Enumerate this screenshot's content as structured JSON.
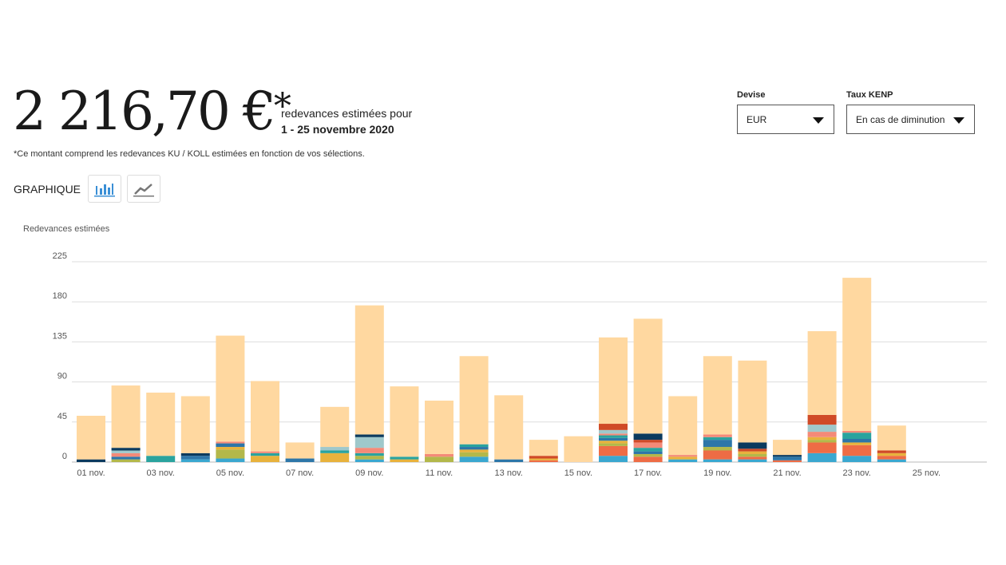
{
  "header": {
    "total": "2 216,70 €",
    "total_mark": "*",
    "subtitle": "redevances estimées pour",
    "period": "1 - 25 novembre 2020",
    "note": "*Ce montant comprend les redevances KU / KOLL estimées en fonction de vos sélections.",
    "graph_label": "GRAPHIQUE"
  },
  "filters": {
    "currency_label": "Devise",
    "currency_value": "EUR",
    "kenp_label": "Taux KENP",
    "kenp_value": "En cas de diminution"
  },
  "chart_data": {
    "type": "bar",
    "stacked": true,
    "ylabel": "Redevances estimées",
    "ylim": [
      0,
      225
    ],
    "yticks": [
      "0",
      "45",
      "90",
      "135",
      "180",
      "225"
    ],
    "grid": true,
    "categories": [
      "01 nov.",
      "02 nov.",
      "03 nov.",
      "04 nov.",
      "05 nov.",
      "06 nov.",
      "07 nov.",
      "08 nov.",
      "09 nov.",
      "10 nov.",
      "11 nov.",
      "12 nov.",
      "13 nov.",
      "14 nov.",
      "15 nov.",
      "16 nov.",
      "17 nov.",
      "18 nov.",
      "19 nov.",
      "20 nov.",
      "21 nov.",
      "22 nov.",
      "23 nov.",
      "24 nov.",
      "25 nov."
    ],
    "xtick_labels": [
      "01 nov.",
      "03 nov.",
      "05 nov.",
      "07 nov.",
      "09 nov.",
      "11 nov.",
      "13 nov.",
      "15 nov.",
      "17 nov.",
      "19 nov.",
      "21 nov.",
      "23 nov.",
      "25 nov."
    ],
    "series": [
      {
        "color": "#3aa7d0",
        "values": [
          0,
          0,
          0,
          3,
          4,
          0,
          0,
          0,
          3,
          0,
          0,
          6,
          0,
          0,
          0,
          7,
          0,
          3,
          3,
          3,
          0,
          10,
          7,
          3,
          0
        ]
      },
      {
        "color": "#ee6c45",
        "values": [
          0,
          0,
          0,
          0,
          0,
          0,
          0,
          0,
          0,
          0,
          0,
          0,
          0,
          2,
          0,
          11,
          6,
          0,
          10,
          3,
          2,
          12,
          12,
          4,
          0
        ]
      },
      {
        "color": "#b3b84a",
        "values": [
          0,
          3,
          0,
          0,
          10,
          0,
          0,
          0,
          4,
          0,
          6,
          5,
          0,
          0,
          0,
          3,
          3,
          0,
          4,
          3,
          0,
          3,
          0,
          0,
          0
        ]
      },
      {
        "color": "#e8b23c",
        "values": [
          0,
          0,
          0,
          0,
          3,
          7,
          0,
          10,
          0,
          3,
          0,
          3,
          0,
          2,
          0,
          3,
          0,
          3,
          0,
          3,
          0,
          3,
          3,
          3,
          0
        ]
      },
      {
        "color": "#2d76a8",
        "values": [
          0,
          3,
          0,
          4,
          4,
          0,
          4,
          0,
          0,
          0,
          0,
          3,
          3,
          0,
          0,
          3,
          3,
          0,
          8,
          0,
          4,
          0,
          4,
          0,
          0
        ]
      },
      {
        "color": "#2aa39e",
        "values": [
          0,
          0,
          7,
          0,
          0,
          3,
          0,
          3,
          3,
          3,
          0,
          3,
          0,
          0,
          0,
          3,
          4,
          0,
          3,
          0,
          0,
          0,
          7,
          0,
          0
        ]
      },
      {
        "color": "#f48a78",
        "values": [
          0,
          4,
          0,
          0,
          2,
          2,
          0,
          0,
          6,
          0,
          3,
          0,
          0,
          0,
          0,
          2,
          6,
          2,
          3,
          0,
          0,
          6,
          2,
          0,
          0
        ]
      },
      {
        "color": "#9fc8cb",
        "values": [
          0,
          3,
          0,
          0,
          0,
          0,
          0,
          4,
          12,
          0,
          0,
          0,
          0,
          0,
          0,
          4,
          0,
          0,
          0,
          0,
          0,
          8,
          0,
          0,
          0
        ]
      },
      {
        "color": "#d04a27",
        "values": [
          0,
          0,
          0,
          0,
          0,
          0,
          0,
          0,
          0,
          0,
          0,
          0,
          0,
          3,
          0,
          7,
          3,
          0,
          0,
          3,
          0,
          11,
          0,
          3,
          0
        ]
      },
      {
        "color": "#0b3a5e",
        "values": [
          3,
          3,
          0,
          3,
          0,
          0,
          0,
          0,
          3,
          0,
          0,
          0,
          0,
          0,
          0,
          0,
          7,
          0,
          0,
          7,
          2,
          0,
          0,
          0,
          0
        ]
      },
      {
        "color": "#ffd8a0",
        "values": [
          49,
          70,
          71,
          64,
          119,
          79,
          18,
          45,
          145,
          79,
          60,
          99,
          72,
          18,
          29,
          97,
          129,
          66,
          88,
          92,
          17,
          94,
          172,
          28,
          0
        ]
      }
    ]
  }
}
